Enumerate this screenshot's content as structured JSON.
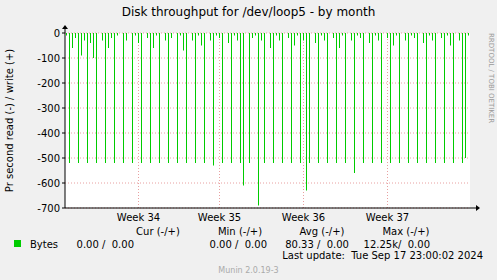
{
  "chart_data": {
    "type": "bar",
    "title": "Disk throughput for /dev/loop5 - by month",
    "y_label": "Pr second read (-) / write (+)",
    "watermark": "RRDTOOL / TOBI OETIKER",
    "categories": [
      null,
      null,
      null,
      null,
      null,
      null,
      null,
      null,
      null,
      null,
      null,
      null,
      null,
      null,
      null,
      null,
      null,
      null,
      null,
      null,
      null,
      null,
      null,
      null,
      "Week 34",
      null,
      null,
      null,
      null,
      null,
      null,
      null,
      null,
      null,
      null,
      null,
      null,
      null,
      null,
      null,
      null,
      null,
      null,
      null,
      null,
      null,
      null,
      null,
      null,
      null,
      null,
      "Week 35",
      null,
      null,
      null,
      null,
      null,
      null,
      null,
      null,
      null,
      null,
      null,
      null,
      null,
      null,
      null,
      null,
      null,
      null,
      null,
      null,
      null,
      null,
      null,
      null,
      null,
      null,
      null,
      "Week 36",
      null,
      null,
      null,
      null,
      null,
      null,
      null,
      null,
      null,
      null,
      null,
      null,
      null,
      null,
      null,
      null,
      null,
      null,
      null,
      null,
      null,
      null,
      null,
      null,
      null,
      null,
      null,
      "Week 37",
      null,
      null,
      null,
      null,
      null,
      null,
      null,
      null,
      null,
      null,
      null,
      null,
      null,
      null,
      null,
      null,
      null,
      null,
      null,
      null,
      null,
      null,
      null,
      null,
      null,
      null,
      null
    ],
    "series": [
      {
        "name": "Bytes",
        "color": "#00cc00",
        "values": [
          -10,
          -520,
          -60,
          -20,
          -520,
          -90,
          -30,
          -520,
          -40,
          -100,
          -520,
          0,
          -30,
          -520,
          -60,
          -20,
          -520,
          -10,
          0,
          -520,
          -30,
          0,
          -520,
          -10,
          -40,
          -520,
          0,
          -20,
          -520,
          -60,
          -10,
          -520,
          0,
          -30,
          -520,
          -20,
          0,
          -520,
          -10,
          -70,
          -520,
          0,
          -30,
          -520,
          -10,
          -50,
          -520,
          0,
          -30,
          -530,
          -10,
          -20,
          -520,
          0,
          -40,
          -520,
          -10,
          -30,
          -520,
          -610,
          0,
          -520,
          -20,
          -10,
          -690,
          -30,
          -520,
          0,
          -60,
          -520,
          -10,
          -30,
          -520,
          0,
          -20,
          -520,
          -50,
          -10,
          -520,
          -30,
          -630,
          -520,
          0,
          -40,
          -520,
          -10,
          -30,
          -520,
          0,
          -20,
          -520,
          -60,
          -10,
          -520,
          0,
          -30,
          -560,
          -10,
          -20,
          -520,
          0,
          -40,
          -520,
          -10,
          -30,
          -520,
          0,
          -20,
          -520,
          -50,
          -10,
          -520,
          0,
          -30,
          -520,
          -10,
          -20,
          -520,
          0,
          -40,
          -520,
          -10,
          -30,
          -520,
          0,
          -20,
          -520,
          -10,
          -50,
          -520,
          0,
          -30,
          -520,
          -500,
          -10
        ],
        "stats": [
          "0.00 /  0.00",
          "0.00 /  0.00",
          "80.33 /  0.00",
          "12.25k/  0.00"
        ]
      }
    ],
    "stats_headers": [
      "Cur (-/+)",
      "Min (-/+)",
      "Avg (-/+)",
      "Max (-/+)"
    ],
    "last_update": "Last update:  Tue Sep 17 23:00:02 2024",
    "footer": "Munin 2.0.19-3",
    "ylim": [
      -700,
      0
    ],
    "yticks": [
      -700,
      -600,
      -500,
      -400,
      -300,
      -200,
      -100,
      0
    ],
    "grid": true
  }
}
